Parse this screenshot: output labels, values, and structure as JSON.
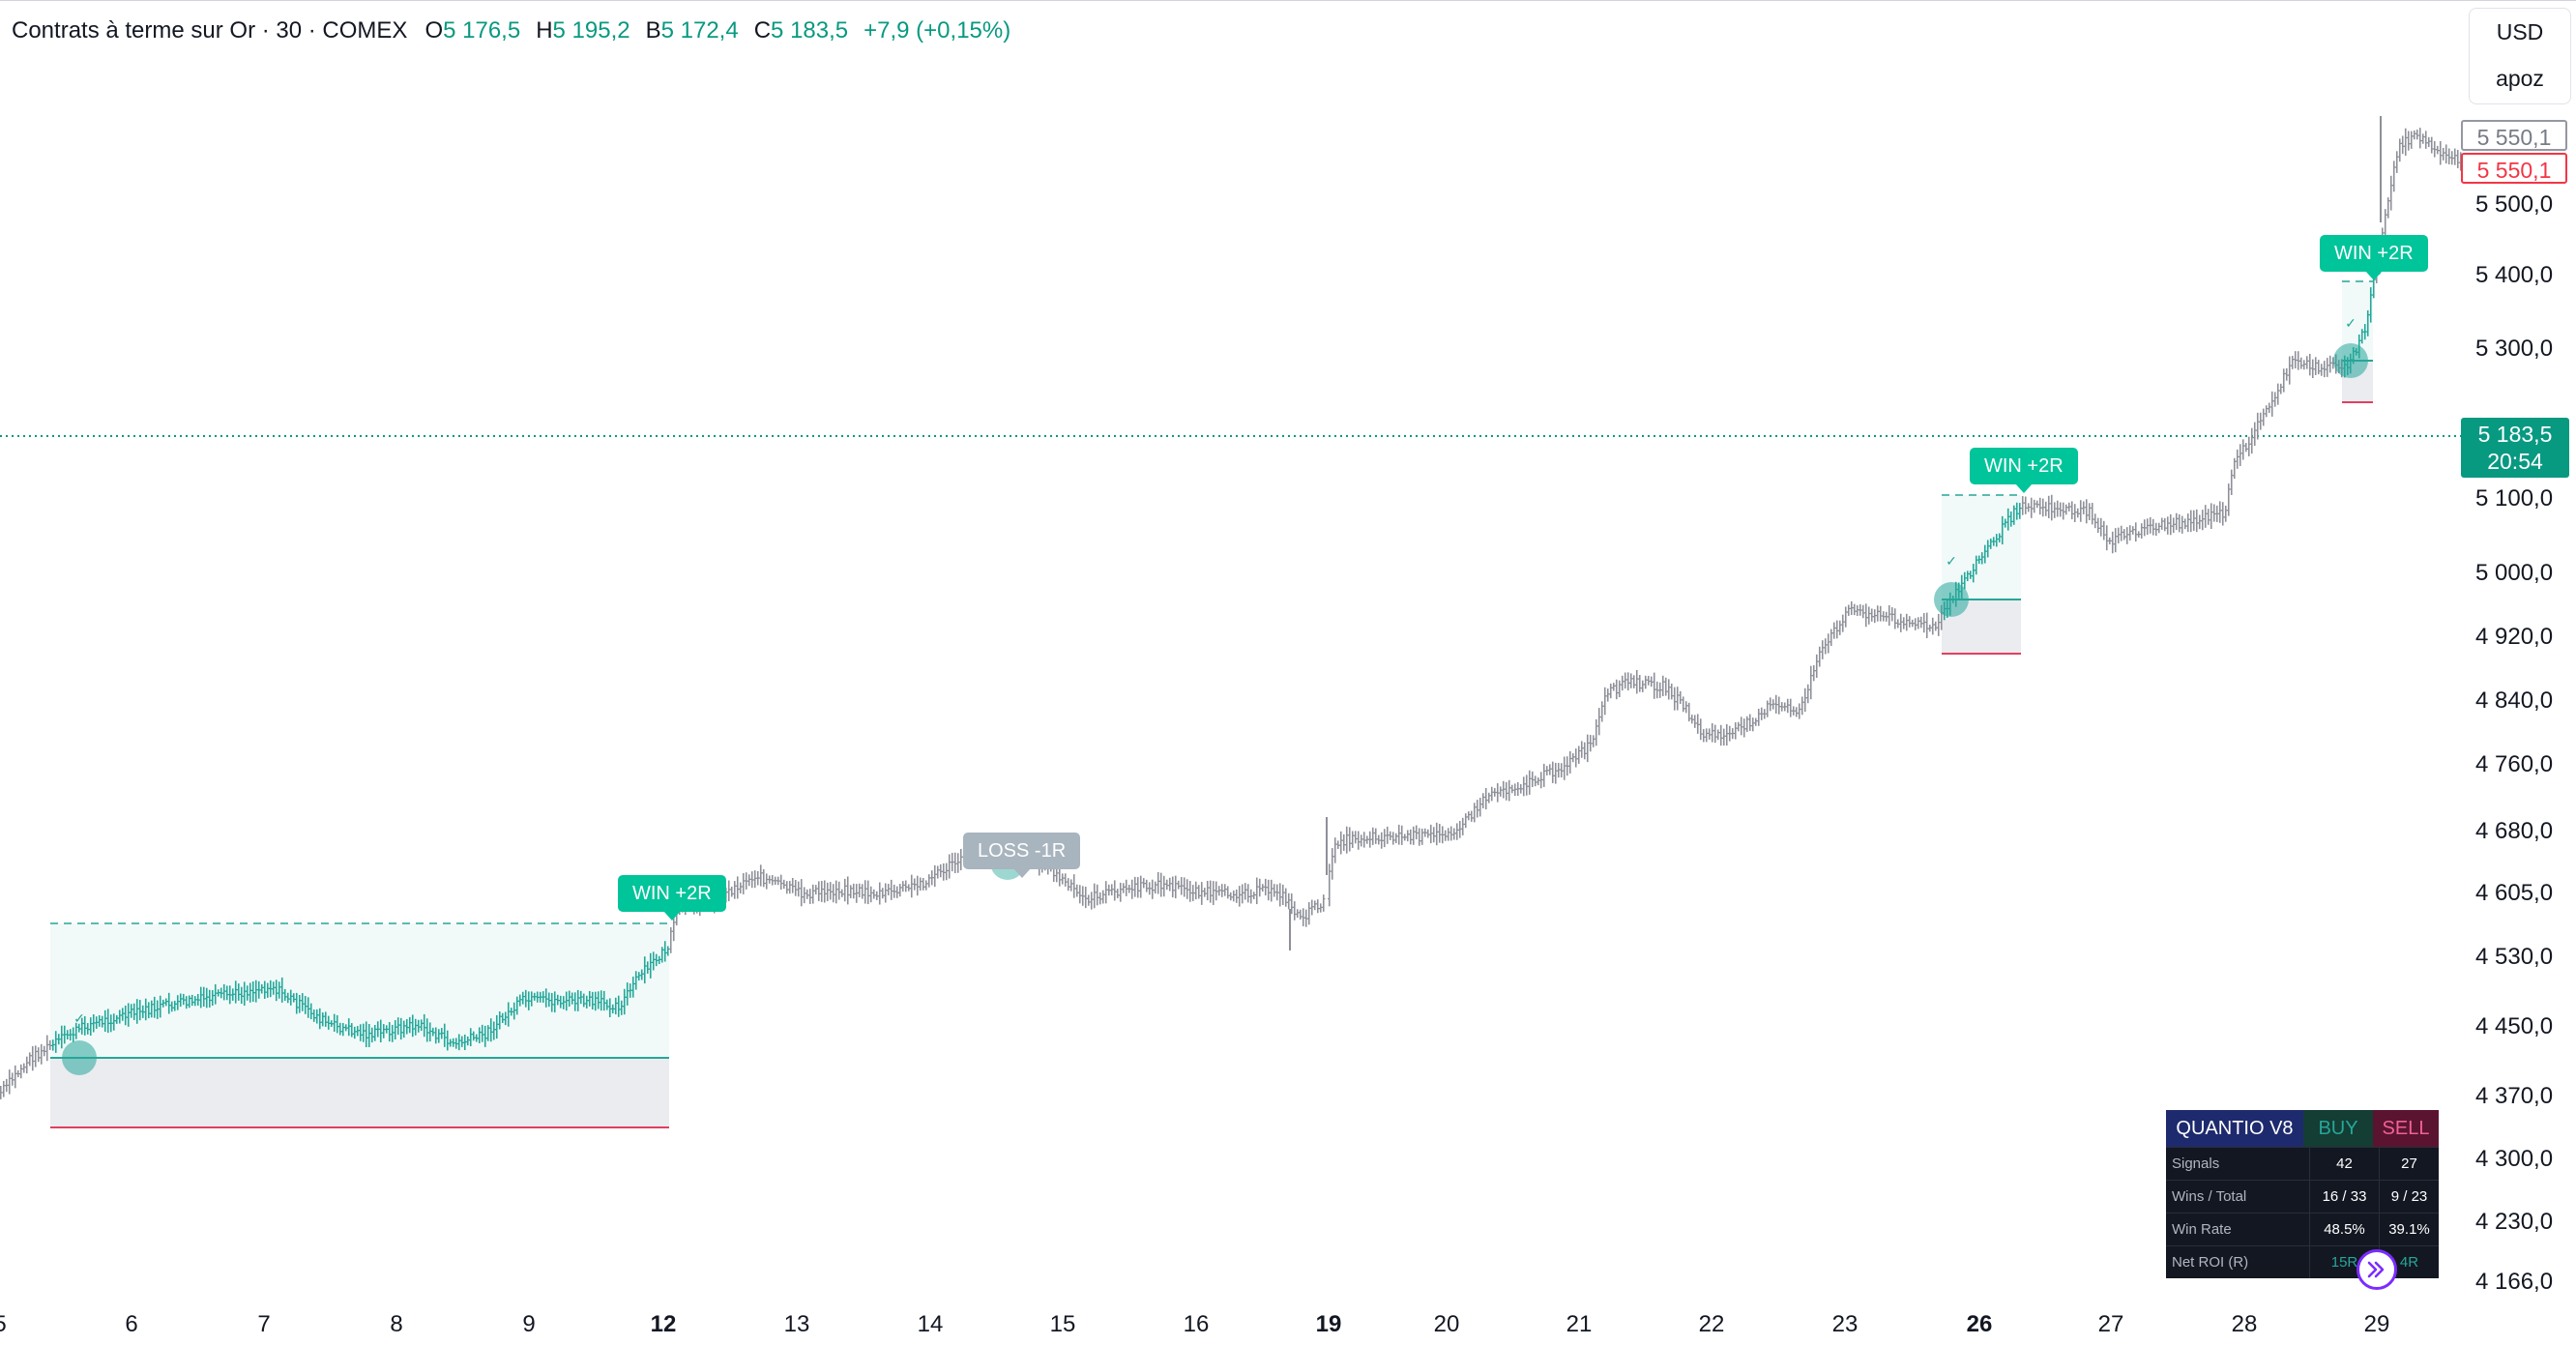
{
  "header": {
    "symbol": "Contrats à terme sur Or · 30 · COMEX",
    "open_label": "O",
    "open_value": "5 176,5",
    "high_label": "H",
    "high_value": "5 195,2",
    "low_label": "B",
    "low_value": "5 172,4",
    "close_label": "C",
    "close_value": "5 183,5",
    "change": "+7,9 (+0,15%)"
  },
  "currency_menu": {
    "currency": "USD",
    "account": "apoz"
  },
  "price_axis": {
    "labels": [
      "5 500,0",
      "5 400,0",
      "5 300,0",
      "5 100,0",
      "5 000,0",
      "4 920,0",
      "4 840,0",
      "4 760,0",
      "4 680,0",
      "4 605,0",
      "4 530,0",
      "4 450,0",
      "4 370,0",
      "4 300,0",
      "4 230,0",
      "4 166,0"
    ],
    "badge_grey": "5 550,1",
    "badge_red": "5 550,1",
    "current_price": "5 183,5",
    "countdown": "20:54"
  },
  "time_axis": {
    "labels": [
      "5",
      "6",
      "7",
      "8",
      "9",
      "12",
      "13",
      "14",
      "15",
      "16",
      "19",
      "20",
      "21",
      "22",
      "23",
      "26",
      "27",
      "28",
      "29"
    ],
    "bold": [
      "12",
      "19",
      "26"
    ]
  },
  "trade_labels": {
    "win1": "WIN +2R",
    "loss1": "LOSS -1R",
    "win2": "WIN +2R",
    "win3": "WIN +2R"
  },
  "stats_table": {
    "title": "QUANTIO V8",
    "buy_header": "BUY",
    "sell_header": "SELL",
    "rows": [
      {
        "label": "Signals",
        "buy": "42",
        "sell": "27"
      },
      {
        "label": "Wins / Total",
        "buy": "16 / 33",
        "sell": "9 / 23"
      },
      {
        "label": "Win Rate",
        "buy": "48.5%",
        "sell": "39.1%"
      },
      {
        "label": "Net ROI (R)",
        "buy": "15R",
        "sell": "4R"
      }
    ]
  },
  "colors": {
    "up": "#089981",
    "down": "#f23645",
    "bars": "#8e9099",
    "win_bars": "#26a69a",
    "win_label": "#00c49a",
    "loss_label": "#a8b4be",
    "table_title_bg": "#1e2a6e",
    "table_buy_bg": "#143d34",
    "table_sell_bg": "#5a1430"
  }
}
